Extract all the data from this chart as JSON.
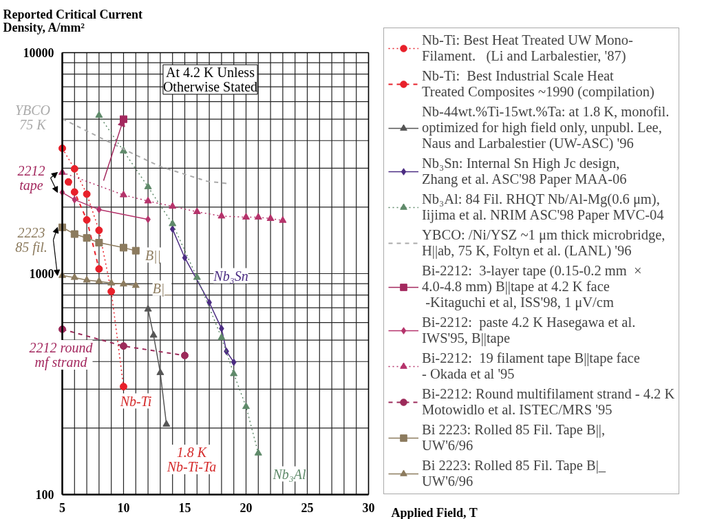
{
  "chart_data": {
    "type": "line",
    "title": "Reported Critical Current\nDensity, A/mm²",
    "xlabel": "Applied Field, T",
    "log": "y",
    "grid": true,
    "legend": "right",
    "xlim": [
      5,
      30
    ],
    "ylim": [
      100,
      10000
    ],
    "xticks": [
      5,
      {
        "value": 6,
        "label": null
      },
      {
        "value": 7,
        "label": null
      },
      {
        "value": 8,
        "label": null
      },
      {
        "value": 9,
        "label": null
      },
      10,
      {
        "value": 11,
        "label": null
      },
      {
        "value": 12,
        "label": null
      },
      {
        "value": 13,
        "label": null
      },
      {
        "value": 14,
        "label": null
      },
      15,
      {
        "value": 16,
        "label": null
      },
      {
        "value": 17,
        "label": null
      },
      {
        "value": 18,
        "label": null
      },
      {
        "value": 19,
        "label": null
      },
      20,
      {
        "value": 21,
        "label": null
      },
      {
        "value": 22,
        "label": null
      },
      {
        "value": 23,
        "label": null
      },
      {
        "value": 24,
        "label": null
      },
      25,
      {
        "value": 26,
        "label": null
      },
      {
        "value": 27,
        "label": null
      },
      {
        "value": 28,
        "label": null
      },
      {
        "value": 29,
        "label": null
      },
      30
    ],
    "yticks": [
      100,
      {
        "value": 200,
        "label": null
      },
      {
        "value": 300,
        "label": null
      },
      {
        "value": 400,
        "label": null
      },
      {
        "value": 500,
        "label": null
      },
      {
        "value": 600,
        "label": null
      },
      {
        "value": 700,
        "label": null
      },
      {
        "value": 800,
        "label": null
      },
      {
        "value": 900,
        "label": null
      },
      1000,
      {
        "value": 2000,
        "label": null
      },
      {
        "value": 3000,
        "label": null
      },
      {
        "value": 4000,
        "label": null
      },
      {
        "value": 5000,
        "label": null
      },
      {
        "value": 6000,
        "label": null
      },
      {
        "value": 7000,
        "label": null
      },
      {
        "value": 8000,
        "label": null
      },
      {
        "value": 9000,
        "label": null
      },
      10000
    ],
    "series": [
      {
        "name": "Nb-Ti: Best Heat Treated UW Mono-\nFilament.   (Li and Larbalestier, '87)",
        "color": "#e8202a",
        "marker": "circle",
        "line_style": "dotted",
        "x": [
          5,
          6,
          7,
          8,
          9,
          10
        ],
        "values": [
          3690,
          2980,
          2290,
          1570,
          830,
          308
        ]
      },
      {
        "name": "Nb-Ti:  Best Industrial Scale Heat\nTreated Composites ~1990 (compilation)",
        "color": "#e8202a",
        "marker": "circle",
        "line_style": "dashed",
        "x": [
          5.5,
          6,
          7,
          8
        ],
        "values": [
          2600,
          2340,
          1750,
          1050
        ]
      },
      {
        "name": "Nb-44wt.%Ti-15wt.%Ta: at 1.8 K, monofil.\noptimized for high field only, unpubl. Lee,\nNaus and Larbalestier (UW-ASC) '96",
        "color": "#555555",
        "marker": "triangle",
        "line_style": "solid",
        "x": [
          12,
          12.45,
          13,
          13.5
        ],
        "values": [
          690,
          526,
          356,
          208
        ]
      },
      {
        "name": "Nb₃Sn: Internal Sn High Jc design,\nZhang et al. ASC'98 Paper MAA-06",
        "color": "#4b2c82",
        "marker": "diamond",
        "line_style": "solid",
        "x": [
          14,
          15,
          17,
          18,
          18.4,
          19
        ],
        "values": [
          1590,
          1180,
          740,
          564,
          445,
          397
        ]
      },
      {
        "name": "Nb₃Al: 84 Fil. RHQT Nb/Al-Mg(0.6 μm),\nIijima et al. NRIM ASC'98 Paper MVC-04",
        "color": "#5f8a6a",
        "marker": "triangle",
        "line_style": "dotted",
        "x": [
          8,
          10,
          12,
          14,
          16,
          18,
          19,
          20,
          21
        ],
        "values": [
          5200,
          3590,
          2470,
          1680,
          960,
          513,
          352,
          250,
          154
        ]
      },
      {
        "name": "YBCO: /Ni/YSZ ~1 μm thick microbridge,\nH||ab, 75 K, Foltyn et al. (LANL) '96",
        "color": "#aaaaaa",
        "line_style": "dashed",
        "x": [
          5,
          8.5,
          11,
          13,
          16.8,
          18.4
        ],
        "values": [
          5020,
          4020,
          3440,
          3050,
          2620,
          2560
        ]
      },
      {
        "name": "Bi-2212:  3-layer tape (0.15-0.2 mm  ×\n4.0-4.8 mm) B||tape at 4.2 K face\n -Kitaguchi et al, ISS'98, 1 μV/cm",
        "color": "#a3285e",
        "marker": "square",
        "line_style": "solid",
        "x": [
          10
        ],
        "values": [
          5000
        ]
      },
      {
        "name": "Bi-2212:  paste 4.2 K Hasegawa et al.\nIWS'95, B||tape",
        "color": "#b5336b",
        "marker": "diamond",
        "line_style": "solid",
        "x": [
          5,
          6,
          8,
          12
        ],
        "values": [
          2330,
          2160,
          1950,
          1760
        ]
      },
      {
        "name": "Bi-2212:  19 filament tape B||tape face\n- Okada et al '95",
        "color": "#b5336b",
        "marker": "triangle",
        "line_style": "dotted",
        "x": [
          5,
          10,
          12,
          14,
          16,
          18,
          20,
          21,
          22,
          23
        ],
        "values": [
          2870,
          2270,
          2130,
          2015,
          1905,
          1820,
          1800,
          1800,
          1775,
          1740
        ]
      },
      {
        "name": "Bi-2212: Round multifilament strand - 4.2 K\nMotowidlo et al. ISTEC/MRS '95",
        "color": "#9c2a5a",
        "marker": "circle",
        "line_style": "dashed",
        "x": [
          5,
          10,
          15
        ],
        "values": [
          560,
          470,
          426
        ]
      },
      {
        "name": "Bi 2223: Rolled 85 Fil. Tape B||,\nUW'6/96",
        "color": "#8c7b5e",
        "marker": "square",
        "line_style": "solid",
        "x": [
          5,
          6,
          7,
          8,
          10,
          11
        ],
        "values": [
          1620,
          1510,
          1450,
          1380,
          1310,
          1270
        ]
      },
      {
        "name": "Bi 2223: Rolled 85 Fil. Tape B|_\nUW'6/96",
        "color": "#8c7b5e",
        "marker": "triangle",
        "line_style": "solid",
        "x": [
          5,
          6,
          7,
          8,
          9,
          10,
          11
        ],
        "values": [
          980,
          960,
          934,
          923,
          906,
          896,
          883
        ]
      }
    ],
    "annotations": [
      "At 4.2 K Unless\nOtherwise Stated",
      "YBCO\n75 K",
      {
        "text": "2212\ntape",
        "x": 5,
        "y": 2870
      },
      {
        "text": "2223\n85 fil.",
        "x": 5,
        "y": 980
      },
      "2212 round\nmf strand",
      "B||",
      "B|_",
      "Nb₃Sn",
      "Nb-Ti",
      "1.8 K\nNb-Ti-Ta",
      "Nb₃Al"
    ]
  }
}
